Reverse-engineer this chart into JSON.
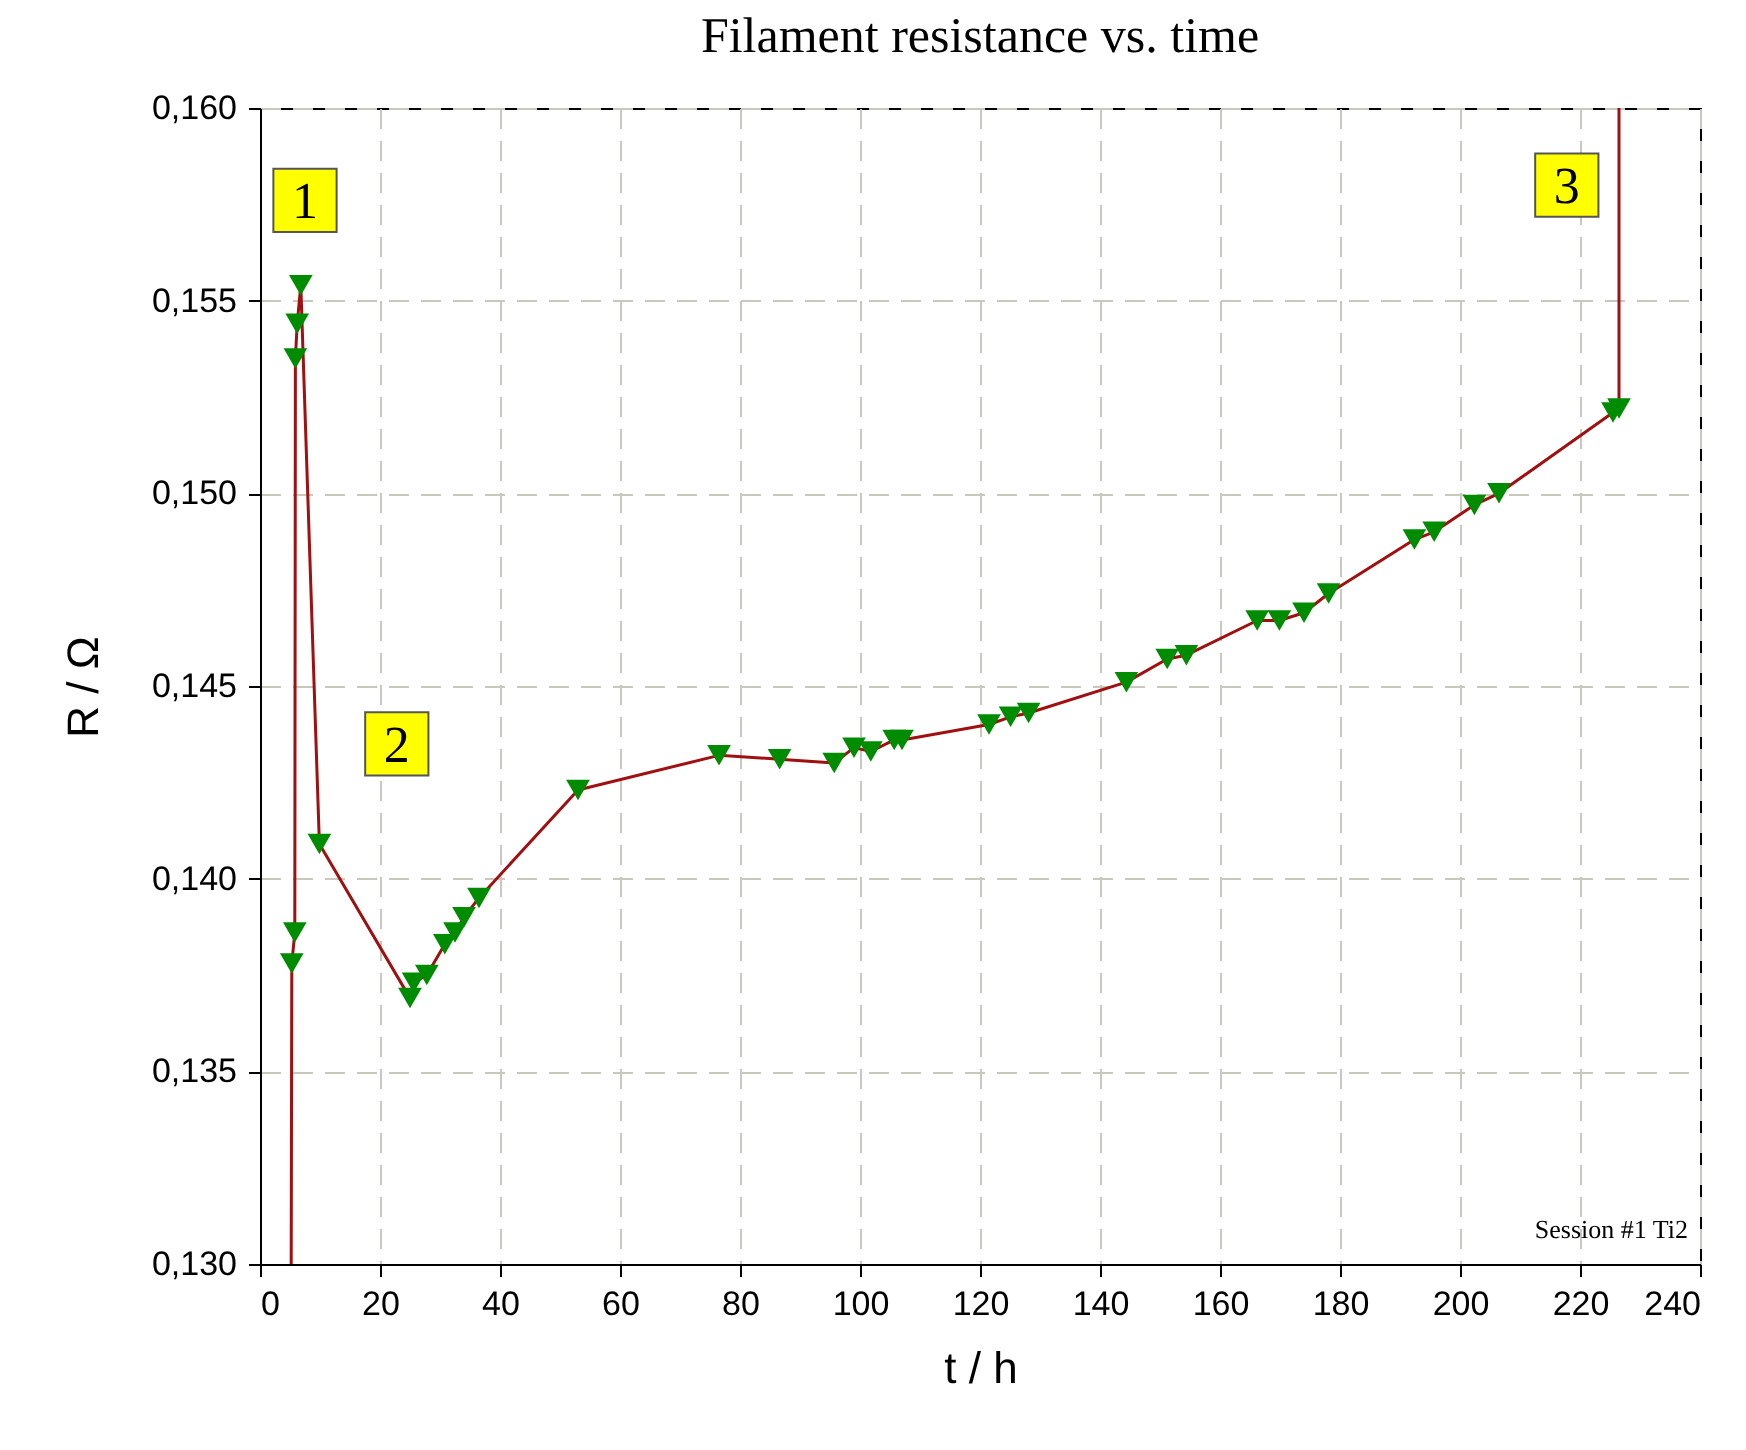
{
  "chart_data": {
    "type": "line",
    "title": "Filament resistance vs. time",
    "xlabel": "t  / h",
    "ylabel": "R  / Ω",
    "xlim": [
      0,
      240
    ],
    "xticks": [
      0,
      20,
      40,
      60,
      80,
      100,
      120,
      140,
      160,
      180,
      200,
      220,
      240
    ],
    "ylim": [
      0.13,
      0.16
    ],
    "yticks": [
      {
        "value": 0.13,
        "label": "0,130"
      },
      {
        "value": 0.135,
        "label": "0,135"
      },
      {
        "value": 0.14,
        "label": "0,140"
      },
      {
        "value": 0.145,
        "label": "0,145"
      },
      {
        "value": 0.15,
        "label": "0,150"
      },
      {
        "value": 0.155,
        "label": "0,155"
      },
      {
        "value": 0.16,
        "label": "0,160"
      }
    ],
    "grid": true,
    "annotations": [
      {
        "text": "1",
        "x": 7.5,
        "y": 0.1576
      },
      {
        "text": "2",
        "x": 22.8,
        "y": 0.1435
      },
      {
        "text": "3",
        "x": 217.8,
        "y": 0.158
      },
      "Session #1 Ti2"
    ],
    "series": [
      {
        "color": "#a01010",
        "marker": "none",
        "x": [
          5.2,
          5.3,
          5.8,
          5.9,
          6.2,
          6.8,
          9.9,
          25,
          25.6,
          27.8,
          30.8,
          32.5,
          34,
          36.5,
          53,
          76.5,
          86.6,
          95.7,
          99,
          101.8,
          105.7,
          107,
          121.5,
          125.1,
          128.1,
          144.4,
          151.2,
          154.4,
          166.2,
          169.9,
          174,
          178.1,
          192.4,
          195.7,
          202.4,
          206.5,
          225.5,
          226.5,
          226.5
        ],
        "values": [
          0.13,
          0.1378,
          0.1386,
          0.1535,
          0.1544,
          0.1554,
          0.1409,
          0.1369,
          0.1373,
          0.1375,
          0.1383,
          0.1386,
          0.139,
          0.1395,
          0.1423,
          0.1432,
          0.1431,
          0.143,
          0.1434,
          0.1433,
          0.1436,
          0.1436,
          0.144,
          0.1442,
          0.1443,
          0.1451,
          0.1457,
          0.1458,
          0.1467,
          0.1467,
          0.1469,
          0.1474,
          0.1488,
          0.149,
          0.1497,
          0.15,
          0.1521,
          0.1522,
          0.16
        ]
      },
      {
        "type": "scatter",
        "color": "#008c00",
        "marker": "triangle",
        "x": [
          5.3,
          5.8,
          5.9,
          6.2,
          6.8,
          9.9,
          25,
          25.6,
          27.8,
          30.8,
          32.5,
          34,
          36.5,
          53,
          76.5,
          86.6,
          95.7,
          99,
          101.8,
          105.7,
          107,
          121.5,
          125.1,
          128.1,
          144.4,
          151.2,
          154.4,
          166.2,
          169.9,
          174,
          178.1,
          192.4,
          195.7,
          202.4,
          206.5,
          225.5,
          226.5
        ],
        "values": [
          0.1378,
          0.1386,
          0.1535,
          0.1544,
          0.1554,
          0.1409,
          0.1369,
          0.1373,
          0.1375,
          0.1383,
          0.1386,
          0.139,
          0.1395,
          0.1423,
          0.1432,
          0.1431,
          0.143,
          0.1434,
          0.1433,
          0.1436,
          0.1436,
          0.144,
          0.1442,
          0.1443,
          0.1451,
          0.1457,
          0.1458,
          0.1467,
          0.1467,
          0.1469,
          0.1474,
          0.1488,
          0.149,
          0.1497,
          0.15,
          0.1521,
          0.1522
        ]
      }
    ]
  }
}
